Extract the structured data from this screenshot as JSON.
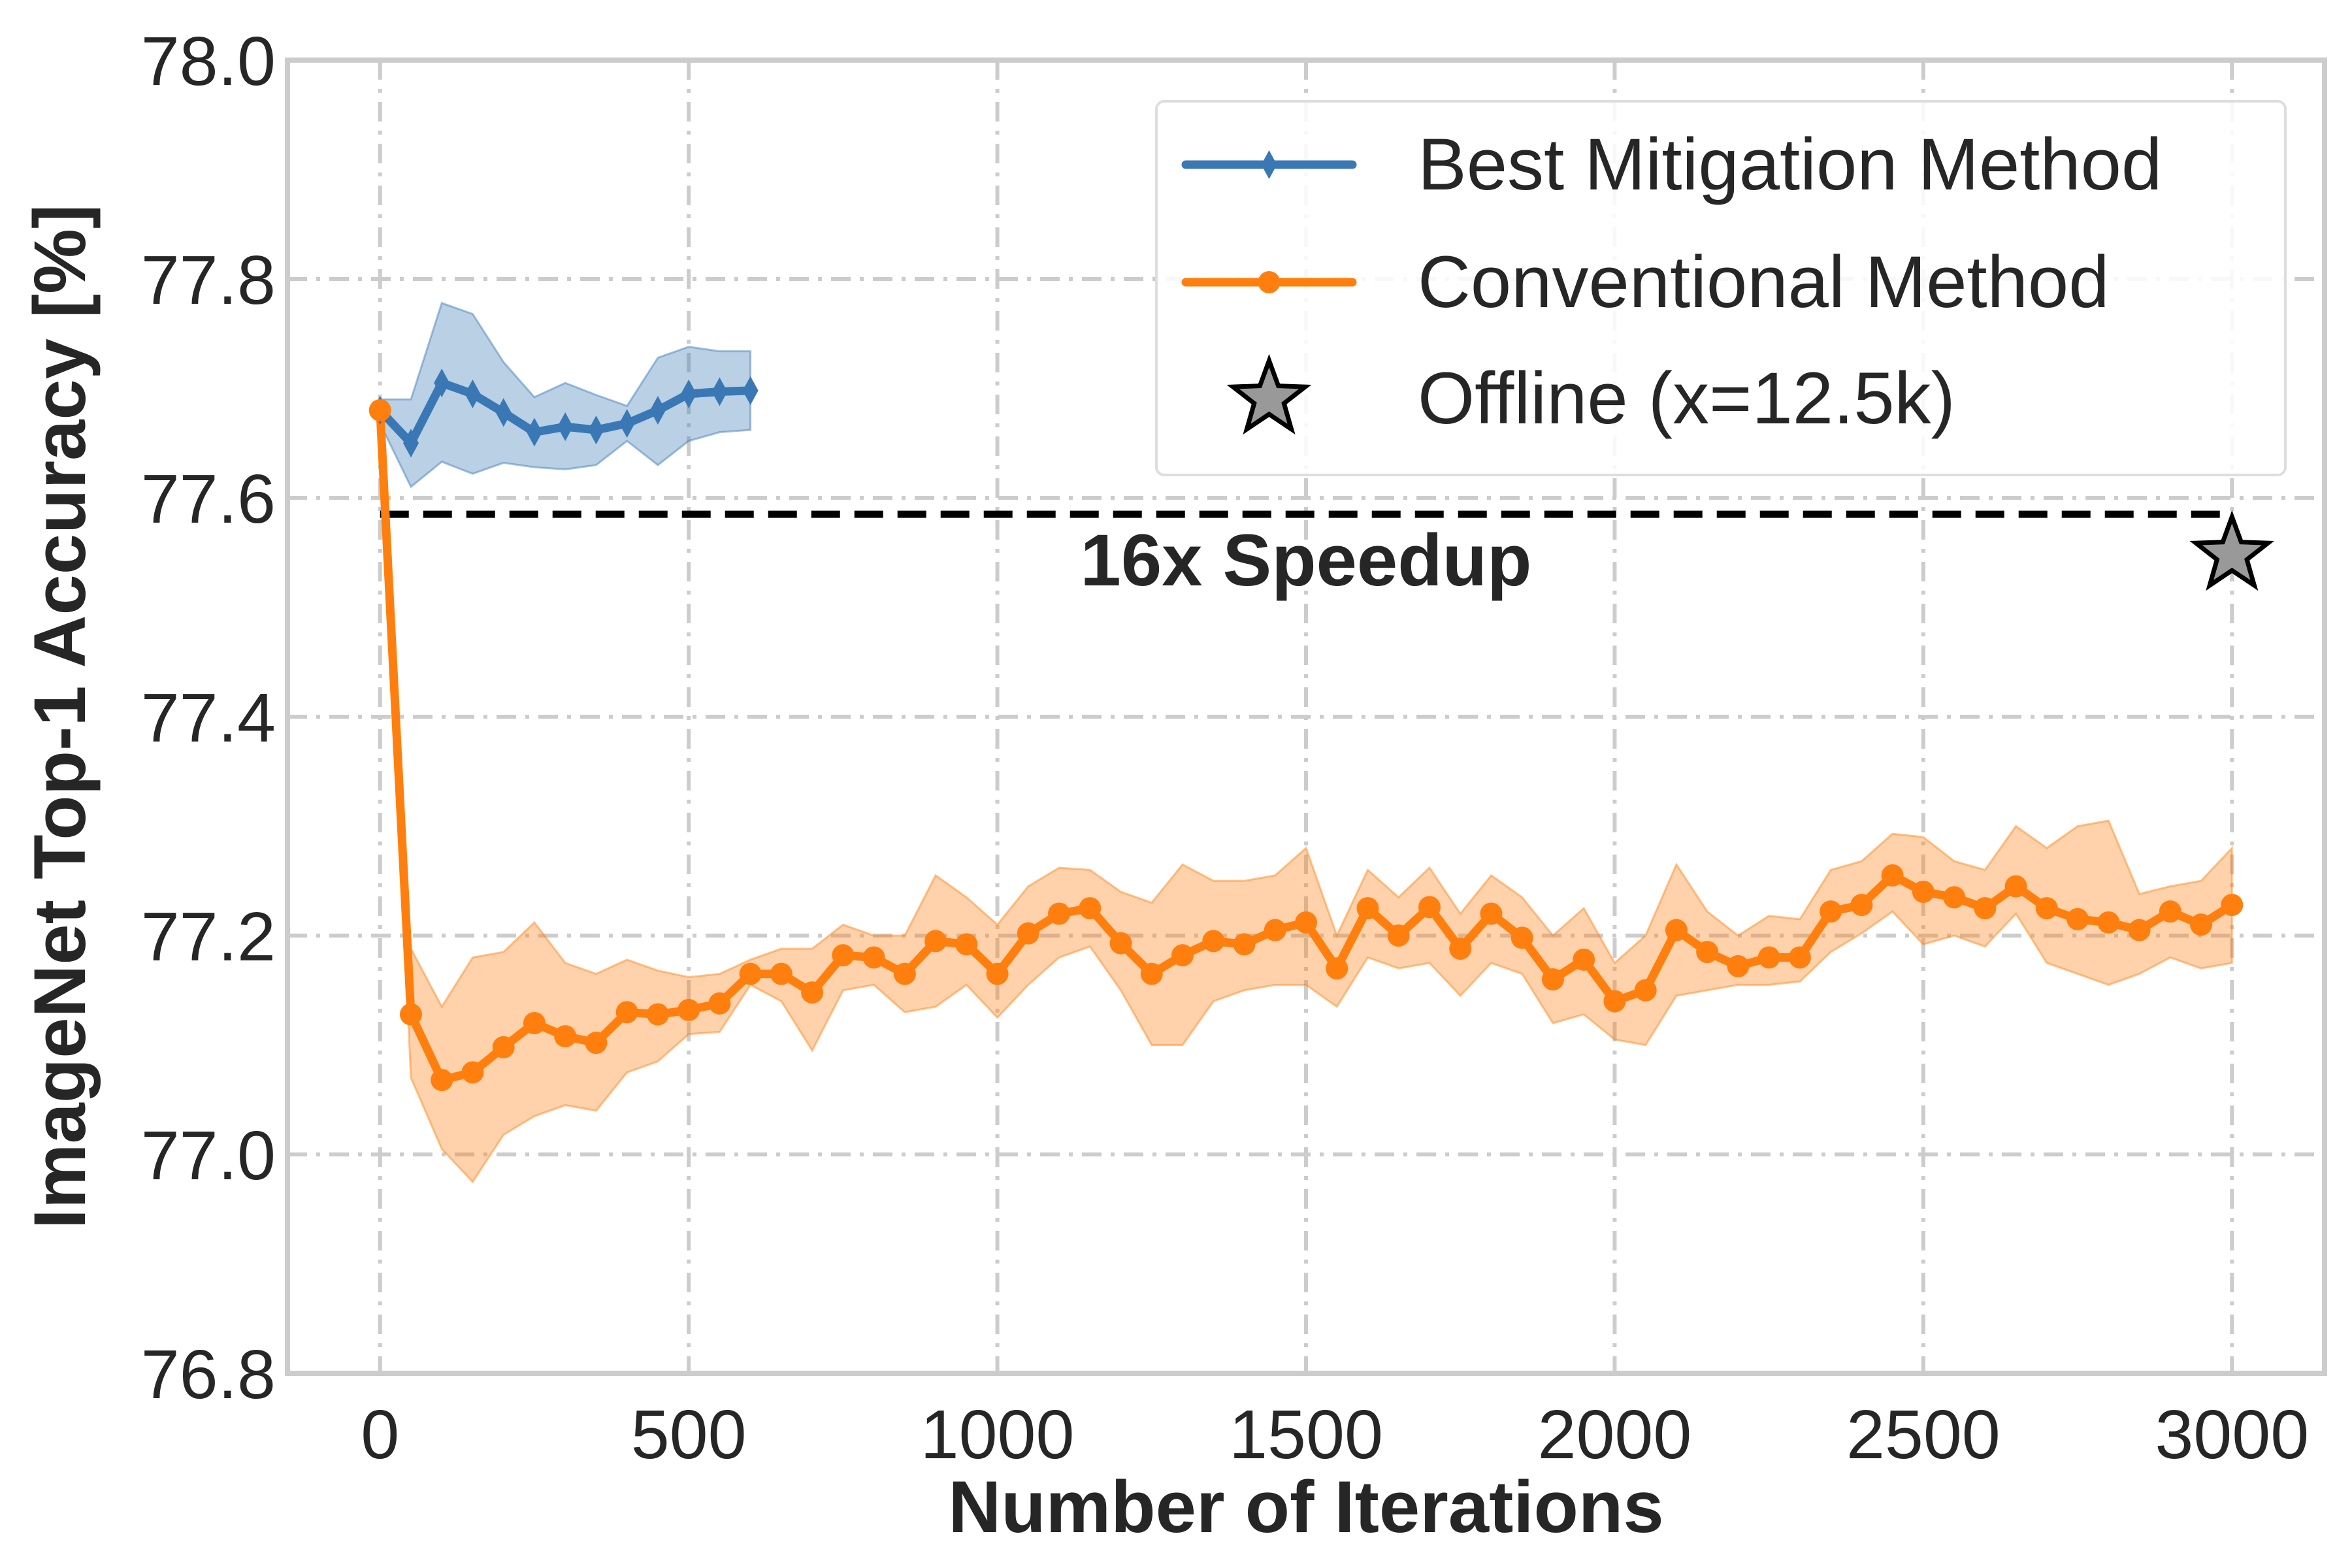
{
  "chart_data": {
    "type": "line",
    "xlabel": "Number of Iterations",
    "ylabel": "ImageNet Top-1 Accuracy [%]",
    "xlim": [
      -150,
      3150
    ],
    "ylim": [
      76.8,
      78.0
    ],
    "xticks": [
      0,
      500,
      1000,
      1500,
      2000,
      2500,
      3000
    ],
    "yticks": [
      76.8,
      77.0,
      77.2,
      77.4,
      77.6,
      77.8,
      78.0
    ],
    "xtick_labels": [
      "0",
      "500",
      "1000",
      "1500",
      "2000",
      "2500",
      "3000"
    ],
    "ytick_labels": [
      "76.8",
      "77.0",
      "77.2",
      "77.4",
      "77.6",
      "77.8",
      "78.0"
    ],
    "grid": true,
    "legend": {
      "placement": "top-right",
      "entries": [
        "Best Mitigation Method",
        "Conventional Method",
        "Offline (x=12.5k)"
      ]
    },
    "series": [
      {
        "name": "Best Mitigation Method",
        "color": "#3a78b5",
        "marker": "thin-diamond",
        "x": [
          0,
          50,
          100,
          150,
          200,
          250,
          300,
          350,
          400,
          450,
          500,
          550,
          600
        ],
        "y": [
          77.68,
          77.65,
          77.705,
          77.695,
          77.678,
          77.66,
          77.665,
          77.662,
          77.668,
          77.68,
          77.695,
          77.697,
          77.698
        ],
        "band_lower": [
          77.668,
          77.61,
          77.633,
          77.622,
          77.632,
          77.628,
          77.626,
          77.63,
          77.652,
          77.63,
          77.652,
          77.66,
          77.662
        ],
        "band_upper": [
          77.69,
          77.69,
          77.778,
          77.768,
          77.724,
          77.692,
          77.705,
          77.694,
          77.684,
          77.728,
          77.738,
          77.734,
          77.734
        ]
      },
      {
        "name": "Conventional Method",
        "color": "#ff7f0e",
        "marker": "circle",
        "x": [
          0,
          50,
          100,
          150,
          200,
          250,
          300,
          350,
          400,
          450,
          500,
          550,
          600,
          650,
          700,
          750,
          800,
          850,
          900,
          950,
          1000,
          1050,
          1100,
          1150,
          1200,
          1250,
          1300,
          1350,
          1400,
          1450,
          1500,
          1550,
          1600,
          1650,
          1700,
          1750,
          1800,
          1850,
          1900,
          1950,
          2000,
          2050,
          2100,
          2150,
          2200,
          2250,
          2300,
          2350,
          2400,
          2450,
          2500,
          2550,
          2600,
          2650,
          2700,
          2750,
          2800,
          2850,
          2900,
          2950,
          3000
        ],
        "y": [
          77.68,
          77.128,
          77.068,
          77.075,
          77.098,
          77.12,
          77.108,
          77.102,
          77.13,
          77.128,
          77.132,
          77.138,
          77.165,
          77.165,
          77.148,
          77.182,
          77.18,
          77.165,
          77.195,
          77.192,
          77.165,
          77.202,
          77.22,
          77.225,
          77.193,
          77.165,
          77.182,
          77.195,
          77.192,
          77.205,
          77.212,
          77.17,
          77.225,
          77.2,
          77.226,
          77.188,
          77.22,
          77.198,
          77.16,
          77.178,
          77.14,
          77.15,
          77.205,
          77.185,
          77.172,
          77.18,
          77.18,
          77.222,
          77.228,
          77.255,
          77.24,
          77.235,
          77.225,
          77.245,
          77.225,
          77.215,
          77.212,
          77.205,
          77.222,
          77.21,
          77.228
        ],
        "band_lower": [
          77.675,
          77.07,
          77.005,
          76.975,
          77.018,
          77.035,
          77.045,
          77.04,
          77.075,
          77.085,
          77.11,
          77.112,
          77.155,
          77.14,
          77.095,
          77.15,
          77.155,
          77.13,
          77.135,
          77.155,
          77.125,
          77.155,
          77.18,
          77.19,
          77.15,
          77.1,
          77.1,
          77.14,
          77.15,
          77.155,
          77.155,
          77.135,
          77.18,
          77.17,
          77.175,
          77.145,
          77.175,
          77.165,
          77.12,
          77.128,
          77.105,
          77.1,
          77.145,
          77.15,
          77.155,
          77.155,
          77.158,
          77.185,
          77.202,
          77.222,
          77.192,
          77.2,
          77.19,
          77.22,
          77.175,
          77.165,
          77.155,
          77.165,
          77.18,
          77.17,
          77.175
        ],
        "band_upper": [
          77.685,
          77.188,
          77.135,
          77.18,
          77.185,
          77.212,
          77.175,
          77.165,
          77.178,
          77.168,
          77.162,
          77.165,
          77.178,
          77.188,
          77.188,
          77.21,
          77.2,
          77.2,
          77.255,
          77.235,
          77.21,
          77.245,
          77.262,
          77.26,
          77.24,
          77.23,
          77.265,
          77.25,
          77.25,
          77.255,
          77.28,
          77.2,
          77.26,
          77.235,
          77.262,
          77.22,
          77.255,
          77.235,
          77.2,
          77.225,
          77.175,
          77.2,
          77.265,
          77.222,
          77.2,
          77.218,
          77.215,
          77.26,
          77.268,
          77.293,
          77.29,
          77.268,
          77.26,
          77.3,
          77.28,
          77.3,
          77.305,
          77.238,
          77.245,
          77.25,
          77.28
        ]
      }
    ],
    "offline": {
      "label": "Offline (x=12.5k)",
      "x": 3000,
      "y": 77.548,
      "marker": "star",
      "color": "#999999"
    },
    "annotations": [
      {
        "type": "dashed-line",
        "x": [
          0,
          3000
        ],
        "y": 77.585,
        "color": "#000000"
      },
      {
        "type": "text",
        "text": "16x Speedup",
        "x": 1500,
        "y": 77.52
      }
    ]
  }
}
